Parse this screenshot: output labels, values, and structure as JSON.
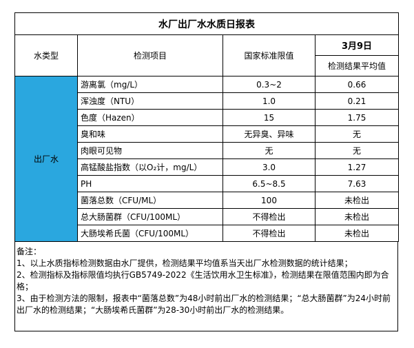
{
  "title": "水厂出厂水水质日报表",
  "header": {
    "water_type": "水类型",
    "item": "检测项目",
    "standard": "国家标准限值",
    "date": "3月9日",
    "result": "检测结果平均值"
  },
  "group": "出厂水",
  "rows": [
    [
      "游离氯（mg/L）",
      "0.3~2",
      "0.66"
    ],
    [
      "浑浊度（NTU）",
      "1.0",
      "0.21"
    ],
    [
      "色度（Hazen）",
      "15",
      "1.75"
    ],
    [
      "臭和味",
      "无异臭、异味",
      "无"
    ],
    [
      "肉眼可见物",
      "无",
      "无"
    ],
    [
      "高锰酸盐指数（以O₂计，mg/L）",
      "3.0",
      "1.27"
    ],
    [
      "PH",
      "6.5~8.5",
      "7.63"
    ],
    [
      "菌落总数（CFU/ML）",
      "100",
      "未检出"
    ],
    [
      "总大肠菌群（CFU/100ML）",
      "不得检出",
      "未检出"
    ],
    [
      "大肠埃希氏菌（CFU/100ML）",
      "不得检出",
      "未检出"
    ]
  ],
  "notes": {
    "label": "备注：",
    "items": [
      "1、以上水质指标检测数据由水厂提供，检测结果平均值系当天出厂水检测数据的统计结果；",
      "2、检测指标及指标限值均执行GB5749-2022《生活饮用水卫生标准》，检测结果在限值范围内即为合格；",
      "3、由于检测方法的限制，报表中“菌落总数”为48小时前出厂水的检测结果；“总大肠菌群”为24小时前出厂水的检测结果；“大肠埃希氏菌群”为28-30小时前出厂水的检测结果。"
    ]
  }
}
